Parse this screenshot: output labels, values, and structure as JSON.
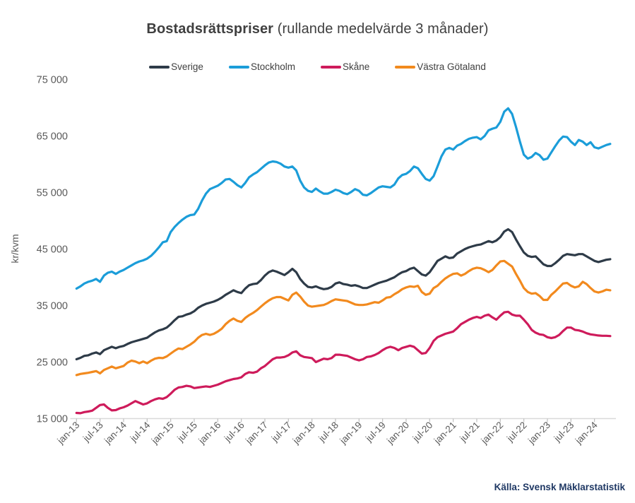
{
  "title": {
    "bold": "Bostadsrättspriser",
    "rest": " (rullande medelvärde 3 månader)"
  },
  "source": "Källa: Svensk Mäklarstatistik",
  "y_axis": {
    "label": "kr/kvm",
    "tick_labels": [
      "15 000",
      "25 000",
      "35 000",
      "45 000",
      "55 000",
      "65 000",
      "75 000"
    ],
    "tick_values": [
      15000,
      25000,
      35000,
      45000,
      55000,
      65000,
      75000
    ],
    "min": 15000,
    "max": 75000
  },
  "x_axis": {
    "tick_labels": [
      "jan-13",
      "jul-13",
      "jan-14",
      "jul-14",
      "jan-15",
      "jul-15",
      "jan-16",
      "jul-16",
      "jan-17",
      "jul-17",
      "jan-18",
      "jul-18",
      "jan-19",
      "jul-19",
      "jan-20",
      "jul-20",
      "jan-21",
      "jul-21",
      "jan-22",
      "jul-22",
      "jan-23",
      "jul-23",
      "jan-24"
    ],
    "months_between_ticks": 6
  },
  "chart_data": {
    "type": "line",
    "title": "Bostadsrättspriser (rullande medelvärde 3 månader)",
    "ylabel": "kr/kvm",
    "ylim": [
      15000,
      75000
    ],
    "grid": false,
    "legend_position": "top-center",
    "x_start": "jan-13",
    "x_end": "maj-24",
    "frequency": "monthly",
    "series": [
      {
        "name": "Sverige",
        "color": "#2e3b48",
        "values": [
          25500,
          25750,
          26100,
          26200,
          26500,
          26700,
          26400,
          27100,
          27400,
          27700,
          27450,
          27700,
          27850,
          28200,
          28500,
          28700,
          28900,
          29100,
          29300,
          29800,
          30250,
          30600,
          30800,
          31100,
          31700,
          32400,
          33000,
          33100,
          33400,
          33600,
          34000,
          34600,
          35000,
          35300,
          35500,
          35700,
          36000,
          36400,
          36900,
          37300,
          37700,
          37400,
          37200,
          38000,
          38600,
          38800,
          38900,
          39500,
          40300,
          40900,
          41200,
          41000,
          40700,
          40400,
          40900,
          41500,
          40900,
          39700,
          38900,
          38300,
          38200,
          38400,
          38100,
          37900,
          38000,
          38300,
          38900,
          39100,
          38800,
          38700,
          38500,
          38600,
          38400,
          38100,
          38100,
          38400,
          38700,
          39000,
          39200,
          39400,
          39700,
          40000,
          40500,
          40900,
          41100,
          41500,
          41700,
          41100,
          40500,
          40300,
          40900,
          41900,
          42900,
          43300,
          43700,
          43400,
          43500,
          44200,
          44600,
          45000,
          45300,
          45500,
          45700,
          45800,
          46100,
          46400,
          46200,
          46500,
          47100,
          48100,
          48500,
          48000,
          46700,
          45500,
          44400,
          43800,
          43600,
          43700,
          43000,
          42300,
          42000,
          42000,
          42500,
          43100,
          43800,
          44100,
          44000,
          43900,
          44100,
          44100,
          43700,
          43300,
          42900,
          42700,
          42900,
          43100,
          43200
        ]
      },
      {
        "name": "Stockholm",
        "color": "#1b9dd9",
        "values": [
          38000,
          38400,
          38900,
          39200,
          39400,
          39700,
          39200,
          40300,
          40800,
          41000,
          40600,
          41000,
          41300,
          41700,
          42100,
          42500,
          42800,
          43000,
          43300,
          43800,
          44500,
          45300,
          46200,
          46400,
          48000,
          48900,
          49600,
          50200,
          50700,
          51000,
          51100,
          52100,
          53600,
          54800,
          55600,
          55900,
          56200,
          56700,
          57300,
          57400,
          56900,
          56300,
          55900,
          56700,
          57700,
          58200,
          58600,
          59200,
          59800,
          60300,
          60500,
          60400,
          60100,
          59600,
          59400,
          59600,
          58900,
          57100,
          55900,
          55300,
          55100,
          55700,
          55200,
          54800,
          54800,
          55100,
          55500,
          55300,
          54900,
          54700,
          55100,
          55600,
          55300,
          54600,
          54500,
          54900,
          55400,
          55900,
          56100,
          56000,
          55900,
          56400,
          57500,
          58100,
          58300,
          58800,
          59600,
          59300,
          58300,
          57400,
          57100,
          57900,
          59600,
          61400,
          62600,
          62900,
          62600,
          63300,
          63600,
          64100,
          64500,
          64700,
          64800,
          64400,
          65000,
          66000,
          66300,
          66500,
          67500,
          69300,
          69900,
          68900,
          66600,
          64000,
          61700,
          61000,
          61300,
          62000,
          61600,
          60800,
          61000,
          62100,
          63200,
          64200,
          64900,
          64800,
          64000,
          63400,
          64300,
          64000,
          63400,
          63900,
          63000,
          62800,
          63100,
          63400,
          63600
        ]
      },
      {
        "name": "Skåne",
        "color": "#ce1b5b",
        "values": [
          16000,
          15950,
          16150,
          16250,
          16400,
          16900,
          17400,
          17500,
          16900,
          16450,
          16500,
          16800,
          17000,
          17300,
          17700,
          18100,
          17800,
          17500,
          17700,
          18100,
          18400,
          18600,
          18500,
          18800,
          19400,
          20100,
          20500,
          20600,
          20800,
          20700,
          20400,
          20500,
          20600,
          20700,
          20600,
          20800,
          21000,
          21300,
          21600,
          21800,
          22000,
          22100,
          22300,
          22900,
          23200,
          23100,
          23300,
          23900,
          24300,
          24900,
          25500,
          25800,
          25800,
          25900,
          26200,
          26700,
          26900,
          26200,
          25900,
          25800,
          25700,
          25000,
          25300,
          25600,
          25500,
          25700,
          26300,
          26300,
          26200,
          26100,
          25800,
          25500,
          25300,
          25500,
          25900,
          26000,
          26250,
          26600,
          27100,
          27500,
          27700,
          27500,
          27100,
          27500,
          27700,
          27900,
          27700,
          27100,
          26500,
          26600,
          27500,
          28750,
          29400,
          29700,
          30000,
          30200,
          30400,
          31000,
          31700,
          32100,
          32500,
          32800,
          33000,
          32800,
          33200,
          33400,
          32900,
          32500,
          33200,
          33800,
          33900,
          33400,
          33200,
          33200,
          32500,
          31700,
          30700,
          30200,
          29900,
          29800,
          29400,
          29250,
          29400,
          29800,
          30500,
          31100,
          31100,
          30700,
          30600,
          30400,
          30100,
          29900,
          29800,
          29700,
          29650,
          29650,
          29600
        ]
      },
      {
        "name": "Västra Götaland",
        "color": "#f28a1e",
        "values": [
          22700,
          22900,
          23000,
          23100,
          23250,
          23400,
          23000,
          23600,
          23900,
          24200,
          23900,
          24100,
          24300,
          24900,
          25250,
          25100,
          24800,
          25100,
          24800,
          25250,
          25600,
          25750,
          25700,
          26000,
          26500,
          27000,
          27400,
          27300,
          27700,
          28100,
          28600,
          29300,
          29800,
          30000,
          29800,
          30000,
          30400,
          30900,
          31700,
          32300,
          32700,
          32300,
          32100,
          32800,
          33300,
          33700,
          34200,
          34800,
          35400,
          35900,
          36300,
          36500,
          36500,
          36200,
          35900,
          36900,
          37300,
          36600,
          35700,
          35000,
          34800,
          34900,
          35000,
          35100,
          35400,
          35800,
          36100,
          36000,
          35900,
          35800,
          35500,
          35200,
          35100,
          35100,
          35200,
          35400,
          35600,
          35500,
          35900,
          36400,
          36500,
          37000,
          37400,
          37900,
          38200,
          38400,
          38300,
          38500,
          37400,
          36900,
          37100,
          38100,
          38500,
          39200,
          39800,
          40250,
          40600,
          40700,
          40300,
          40600,
          41100,
          41500,
          41700,
          41600,
          41300,
          40900,
          41300,
          42100,
          42800,
          42900,
          42400,
          41900,
          40600,
          39400,
          38100,
          37400,
          37100,
          37200,
          36700,
          36000,
          36000,
          36900,
          37500,
          38200,
          38900,
          39000,
          38500,
          38200,
          38400,
          39200,
          38800,
          38100,
          37500,
          37300,
          37500,
          37800,
          37700
        ]
      }
    ]
  }
}
